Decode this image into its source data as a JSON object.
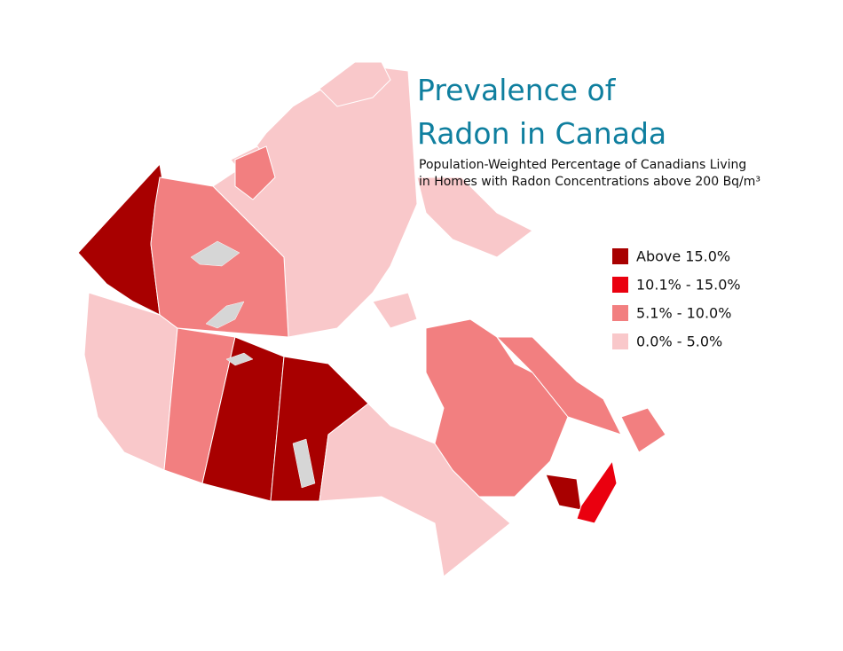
{
  "title": [
    "Prevalence of",
    "Radon in Canada"
  ],
  "subtitle": [
    "Population-Weighted Percentage of Canadians Living",
    "in Homes with Radon Concentrations above 200 Bq/m³"
  ],
  "legend": [
    {
      "label": "Above 15.0%",
      "color": "#a80000"
    },
    {
      "label": "10.1% - 15.0%",
      "color": "#ea000f"
    },
    {
      "label": "5.1% - 10.0%",
      "color": "#f27f80"
    },
    {
      "label": "0.0% - 5.0%",
      "color": "#f9c8ca"
    }
  ]
}
